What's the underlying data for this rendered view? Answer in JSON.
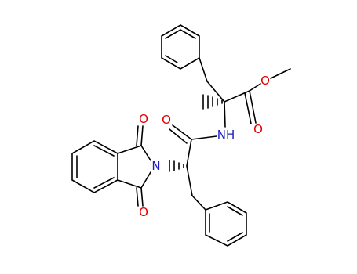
{
  "atoms": [
    {
      "label": "O"
    },
    {
      "label": "O"
    },
    {
      "label": "NH"
    },
    {
      "label": "O"
    },
    {
      "label": "O"
    },
    {
      "label": "N"
    },
    {
      "label": "O"
    }
  ]
}
